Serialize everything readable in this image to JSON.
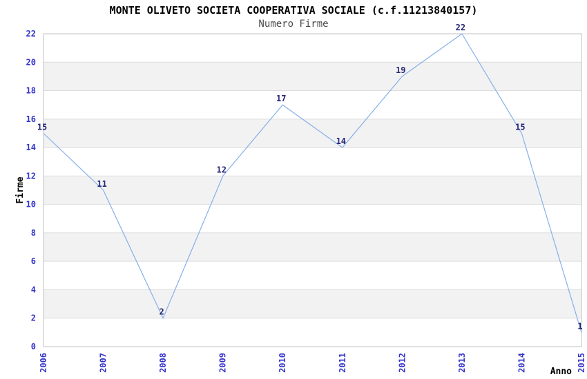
{
  "chart_data": {
    "type": "line",
    "title": "MONTE OLIVETO SOCIETA COOPERATIVA SOCIALE (c.f.11213840157)",
    "subtitle": "Numero Firme",
    "xlabel": "Anno",
    "ylabel": "Firme",
    "categories": [
      "2006",
      "2007",
      "2008",
      "2009",
      "2010",
      "2011",
      "2012",
      "2013",
      "2014",
      "2015"
    ],
    "series": [
      {
        "name": "Numero Firme",
        "values": [
          15,
          11,
          2,
          12,
          17,
          14,
          19,
          22,
          15,
          1
        ]
      }
    ],
    "data_labels": [
      "15",
      "11",
      "2",
      "12",
      "17",
      "14",
      "19",
      "22",
      "15",
      "1"
    ],
    "ylim": [
      0,
      22
    ],
    "ytick_step": 2,
    "yticks": [
      0,
      2,
      4,
      6,
      8,
      10,
      12,
      14,
      16,
      18,
      20,
      22
    ],
    "grid": "horizontal-bands-alternating",
    "legend": "none",
    "colors": {
      "line": "#85afe9",
      "data_label": "#262678",
      "tick_label": "#3333cc",
      "band_gray": "#f2f2f2",
      "band_white": "#ffffff",
      "gridline": "#dcdcdc",
      "plot_border": "#c0c0c0",
      "title": "#000000",
      "subtitle": "#4a4a4a",
      "axis_title": "#000000"
    }
  }
}
